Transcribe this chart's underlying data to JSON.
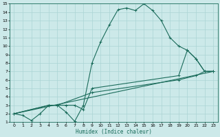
{
  "xlabel": "Humidex (Indice chaleur)",
  "xlim": [
    -0.5,
    23.5
  ],
  "ylim": [
    1,
    15
  ],
  "xticks": [
    0,
    1,
    2,
    3,
    4,
    5,
    6,
    7,
    8,
    9,
    10,
    11,
    12,
    13,
    14,
    15,
    16,
    17,
    18,
    19,
    20,
    21,
    22,
    23
  ],
  "yticks": [
    1,
    2,
    3,
    4,
    5,
    6,
    7,
    8,
    9,
    10,
    11,
    12,
    13,
    14,
    15
  ],
  "bg_color": "#cce9e9",
  "grid_color": "#aad4d4",
  "line_color": "#1a6b5a",
  "series1_x": [
    0,
    1,
    2,
    3,
    4,
    5,
    6,
    7,
    8,
    9,
    10,
    11,
    12,
    13,
    14,
    15,
    16,
    17,
    18,
    19,
    20,
    21,
    22,
    23
  ],
  "series1_y": [
    2,
    1.8,
    1.2,
    2,
    3,
    3,
    2.2,
    1.1,
    3,
    8,
    10.5,
    12.5,
    14.3,
    14.5,
    14.2,
    15,
    14.2,
    13,
    11,
    10,
    9.5,
    8.5,
    7,
    7
  ],
  "series2_x": [
    0,
    4,
    5,
    6,
    7,
    8,
    9,
    19,
    20,
    21,
    22,
    23
  ],
  "series2_y": [
    2,
    3,
    3,
    3,
    3,
    2.5,
    5,
    6.5,
    9.5,
    8.5,
    7,
    7
  ],
  "series3_x": [
    0,
    23
  ],
  "series3_y": [
    2,
    7
  ],
  "series4_x": [
    0,
    4,
    5,
    9,
    19,
    21,
    22,
    23
  ],
  "series4_y": [
    2,
    3,
    3,
    4.5,
    6,
    6.5,
    7,
    7
  ]
}
